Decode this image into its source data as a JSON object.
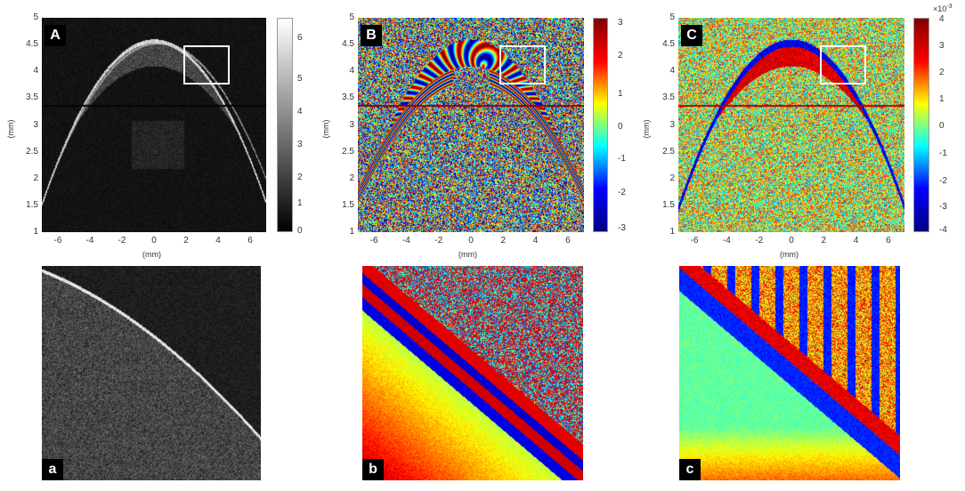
{
  "panels": {
    "A": {
      "label": "A",
      "colorbar_ticks": [
        "6",
        "5",
        "4",
        "3",
        "2",
        "1",
        "0"
      ]
    },
    "B": {
      "label": "B",
      "colorbar_ticks": [
        "3",
        "2",
        "1",
        "0",
        "-1",
        "-2",
        "-3"
      ]
    },
    "C": {
      "label": "C",
      "colorbar_ticks": [
        "4",
        "3",
        "2",
        "1",
        "0",
        "-1",
        "-2",
        "-3",
        "-4"
      ],
      "colorbar_multiplier": "×10",
      "colorbar_exponent": "-3"
    },
    "a": {
      "label": "a"
    },
    "b": {
      "label": "b"
    },
    "c": {
      "label": "c"
    }
  },
  "axes": {
    "y_ticks": [
      "5",
      "4.5",
      "4",
      "3.5",
      "3",
      "2.5",
      "2",
      "1.5",
      "1"
    ],
    "x_ticks": [
      "-6",
      "-4",
      "-2",
      "0",
      "2",
      "4",
      "6"
    ],
    "x_unit": "(mm)",
    "y_unit": "(mm)"
  },
  "colors": {
    "background": "#ffffff",
    "label_bg": "#000000",
    "label_fg": "#ffffff",
    "zoom_box": "#ffffff"
  }
}
